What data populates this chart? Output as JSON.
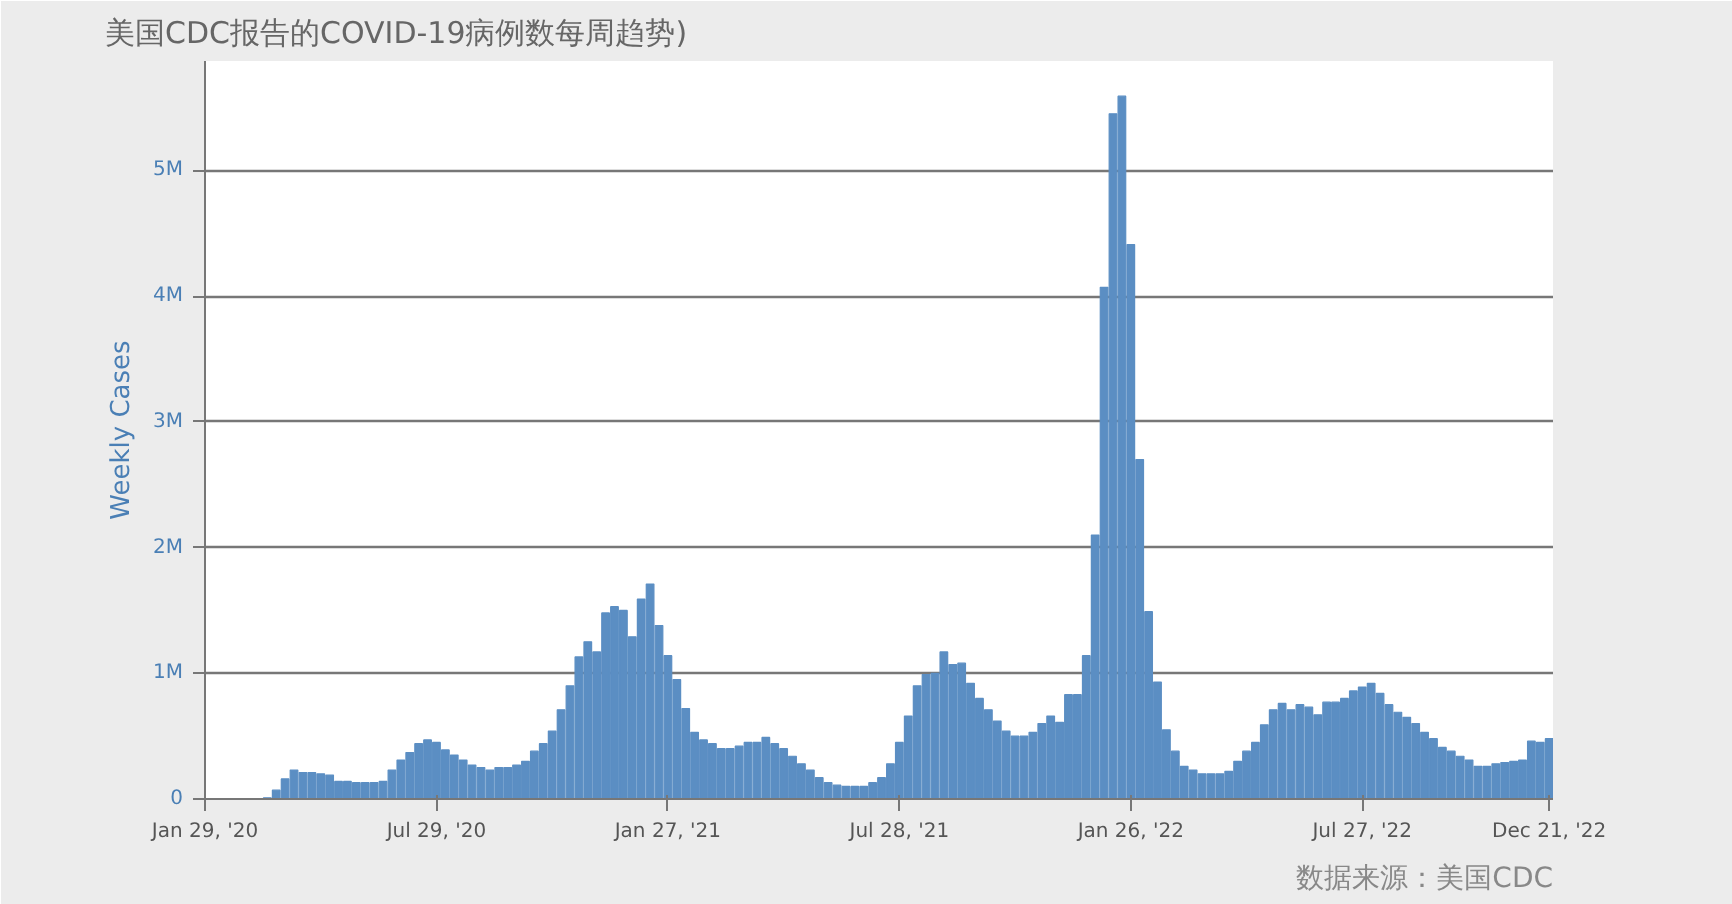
{
  "chart_data": {
    "type": "bar",
    "title": "美国CDC报告的COVID-19病例数每周趋势)",
    "ylabel": "Weekly Cases",
    "annotations": [
      "数据来源：美国CDC"
    ],
    "color": "#5b8ec3",
    "grid": "y",
    "ylim": [
      0,
      5870000
    ],
    "yticks": [
      0,
      {
        "value": 1000000,
        "label": "1M"
      },
      {
        "value": 2000000,
        "label": "2M"
      },
      {
        "value": 3000000,
        "label": "3M"
      },
      {
        "value": 4000000,
        "label": "4M"
      },
      {
        "value": 5000000,
        "label": "5M"
      }
    ],
    "xlim": [
      "2020-01-29",
      "2022-12-24"
    ],
    "xticks": [
      {
        "value": "2020-01-29",
        "label": "Jan 29, '20"
      },
      {
        "value": "2020-07-29",
        "label": "Jul 29, '20"
      },
      {
        "value": "2021-01-27",
        "label": "Jan 27, '21"
      },
      {
        "value": "2021-07-28",
        "label": "Jul 28, '21"
      },
      {
        "value": "2022-01-26",
        "label": "Jan 26, '22"
      },
      {
        "value": "2022-07-27",
        "label": "Jul 27, '22"
      },
      {
        "value": "2022-12-21",
        "label": "Dec 21, '22"
      }
    ],
    "x": [
      "2020-01-29",
      "2020-02-05",
      "2020-02-12",
      "2020-02-19",
      "2020-02-26",
      "2020-03-04",
      "2020-03-11",
      "2020-03-18",
      "2020-03-25",
      "2020-04-01",
      "2020-04-08",
      "2020-04-15",
      "2020-04-22",
      "2020-04-29",
      "2020-05-06",
      "2020-05-13",
      "2020-05-20",
      "2020-05-27",
      "2020-06-03",
      "2020-06-10",
      "2020-06-17",
      "2020-06-24",
      "2020-07-01",
      "2020-07-08",
      "2020-07-15",
      "2020-07-22",
      "2020-07-29",
      "2020-08-05",
      "2020-08-12",
      "2020-08-19",
      "2020-08-26",
      "2020-09-02",
      "2020-09-09",
      "2020-09-16",
      "2020-09-23",
      "2020-09-30",
      "2020-10-07",
      "2020-10-14",
      "2020-10-21",
      "2020-10-28",
      "2020-11-04",
      "2020-11-11",
      "2020-11-18",
      "2020-11-25",
      "2020-12-02",
      "2020-12-09",
      "2020-12-16",
      "2020-12-23",
      "2020-12-30",
      "2021-01-06",
      "2021-01-13",
      "2021-01-20",
      "2021-01-27",
      "2021-02-03",
      "2021-02-10",
      "2021-02-17",
      "2021-02-24",
      "2021-03-03",
      "2021-03-10",
      "2021-03-17",
      "2021-03-24",
      "2021-03-31",
      "2021-04-07",
      "2021-04-14",
      "2021-04-21",
      "2021-04-28",
      "2021-05-05",
      "2021-05-12",
      "2021-05-19",
      "2021-05-26",
      "2021-06-02",
      "2021-06-09",
      "2021-06-16",
      "2021-06-23",
      "2021-06-30",
      "2021-07-07",
      "2021-07-14",
      "2021-07-21",
      "2021-07-28",
      "2021-08-04",
      "2021-08-11",
      "2021-08-18",
      "2021-08-25",
      "2021-09-01",
      "2021-09-08",
      "2021-09-15",
      "2021-09-22",
      "2021-09-29",
      "2021-10-06",
      "2021-10-13",
      "2021-10-20",
      "2021-10-27",
      "2021-11-03",
      "2021-11-10",
      "2021-11-17",
      "2021-11-24",
      "2021-12-01",
      "2021-12-08",
      "2021-12-15",
      "2021-12-22",
      "2021-12-29",
      "2022-01-05",
      "2022-01-12",
      "2022-01-19",
      "2022-01-26",
      "2022-02-02",
      "2022-02-09",
      "2022-02-16",
      "2022-02-23",
      "2022-03-02",
      "2022-03-09",
      "2022-03-16",
      "2022-03-23",
      "2022-03-30",
      "2022-04-06",
      "2022-04-13",
      "2022-04-20",
      "2022-04-27",
      "2022-05-04",
      "2022-05-11",
      "2022-05-18",
      "2022-05-25",
      "2022-06-01",
      "2022-06-08",
      "2022-06-15",
      "2022-06-22",
      "2022-06-29",
      "2022-07-06",
      "2022-07-13",
      "2022-07-20",
      "2022-07-27",
      "2022-08-03",
      "2022-08-10",
      "2022-08-17",
      "2022-08-24",
      "2022-08-31",
      "2022-09-07",
      "2022-09-14",
      "2022-09-21",
      "2022-09-28",
      "2022-10-05",
      "2022-10-12",
      "2022-10-19",
      "2022-10-26",
      "2022-11-02",
      "2022-11-09",
      "2022-11-16",
      "2022-11-23",
      "2022-11-30",
      "2022-12-07",
      "2022-12-14",
      "2022-12-21"
    ],
    "values": [
      0,
      0,
      0,
      0,
      0,
      0,
      0,
      10000,
      70000,
      160000,
      230000,
      210000,
      210000,
      200000,
      190000,
      140000,
      140000,
      130000,
      130000,
      130000,
      140000,
      230000,
      310000,
      370000,
      440000,
      470000,
      450000,
      390000,
      350000,
      310000,
      270000,
      250000,
      230000,
      250000,
      250000,
      270000,
      300000,
      380000,
      440000,
      540000,
      710000,
      900000,
      1130000,
      1250000,
      1170000,
      1480000,
      1530000,
      1500000,
      1290000,
      1590000,
      1710000,
      1380000,
      1140000,
      950000,
      720000,
      530000,
      470000,
      440000,
      400000,
      400000,
      420000,
      450000,
      450000,
      490000,
      440000,
      400000,
      340000,
      280000,
      230000,
      170000,
      130000,
      110000,
      100000,
      100000,
      100000,
      130000,
      170000,
      280000,
      450000,
      660000,
      900000,
      990000,
      1000000,
      1170000,
      1070000,
      1080000,
      920000,
      800000,
      710000,
      620000,
      540000,
      500000,
      500000,
      530000,
      600000,
      660000,
      610000,
      830000,
      830000,
      1140000,
      2100000,
      4070000,
      5450000,
      5590000,
      4410000,
      2700000,
      1490000,
      930000,
      550000,
      380000,
      260000,
      230000,
      200000,
      200000,
      200000,
      220000,
      300000,
      380000,
      450000,
      590000,
      710000,
      760000,
      710000,
      750000,
      730000,
      670000,
      770000,
      770000,
      800000,
      860000,
      890000,
      920000,
      840000,
      750000,
      690000,
      650000,
      600000,
      530000,
      480000,
      410000,
      380000,
      340000,
      310000,
      260000,
      260000,
      280000,
      290000,
      300000,
      310000,
      460000,
      450000,
      480000
    ]
  }
}
